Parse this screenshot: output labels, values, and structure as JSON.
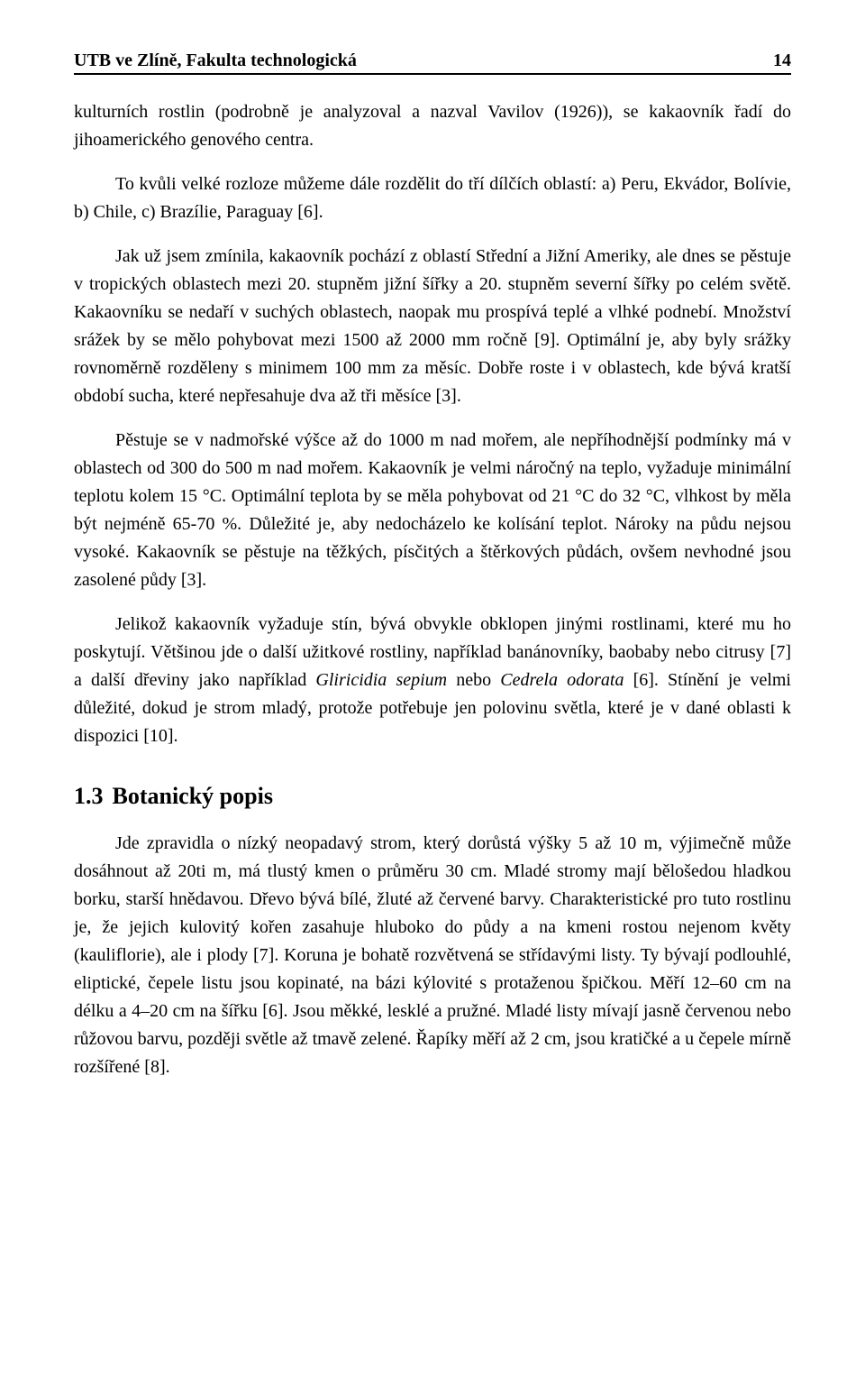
{
  "colors": {
    "page_background": "#ffffff",
    "text_color": "#000000",
    "rule_color": "#000000"
  },
  "typography": {
    "font_family": "Times New Roman",
    "body_fontsize_pt": 15,
    "header_fontsize_pt": 15,
    "heading_fontsize_pt": 20,
    "line_height": 1.55
  },
  "header": {
    "left": "UTB ve Zlíně, Fakulta technologická",
    "page_number": "14"
  },
  "paragraphs": {
    "p1": "kulturních rostlin (podrobně je analyzoval a nazval Vavilov (1926)), se kakaovník řadí do jihoamerického genového centra.",
    "p2": "To kvůli velké rozloze můžeme dále rozdělit do tří dílčích oblastí: a) Peru, Ekvádor, Bolívie, b) Chile, c) Brazílie, Paraguay [6].",
    "p3": "Jak už jsem zmínila, kakaovník pochází z oblastí Střední a Jižní Ameriky, ale dnes se pěstuje v tropických oblastech mezi 20. stupněm jižní šířky a 20. stupněm severní šířky po celém světě. Kakaovníku se nedaří v suchých oblastech, naopak mu prospívá teplé a vlhké podnebí. Množství srážek by se mělo pohybovat mezi 1500 až 2000 mm ročně [9]. Optimální je, aby byly srážky rovnoměrně rozděleny s minimem 100 mm za měsíc. Dobře roste i v oblastech, kde bývá kratší období sucha, které nepřesahuje dva až tři měsíce [3].",
    "p4": "Pěstuje se v nadmořské výšce až do 1000 m nad mořem, ale nepříhodnější podmínky má v oblastech od 300 do 500 m nad mořem. Kakaovník je velmi náročný na teplo, vyžaduje minimální teplotu kolem 15 °C. Optimální teplota by se měla pohybovat od 21 °C do 32 °C, vlhkost by měla být nejméně 65-70 %. Důležité je, aby nedocházelo ke kolísání teplot. Nároky na půdu nejsou vysoké. Kakaovník se pěstuje na těžkých, písčitých a štěrkových půdách, ovšem nevhodné jsou zasolené půdy [3].",
    "p5_a": "Jelikož kakaovník vyžaduje stín, bývá obvykle obklopen jinými rostlinami, které mu ho poskytují. Většinou jde o další užitkové rostliny, například banánovníky, baobaby nebo citrusy [7] a další dřeviny jako například ",
    "p5_it1": "Gliricidia sepium",
    "p5_mid": " nebo ",
    "p5_it2": "Cedrela odorata",
    "p5_b": " [6]. Stínění je velmi důležité, dokud je strom mladý, protože potřebuje jen polovinu světla, které je v dané oblasti k dispozici [10].",
    "p6": "Jde zpravidla o nízký neopadavý strom, který dorůstá výšky 5 až 10 m, výjimečně může dosáhnout až 20ti m, má tlustý kmen o průměru 30 cm. Mladé stromy mají bělošedou hladkou borku, starší hnědavou. Dřevo bývá bílé, žluté až červené barvy. Charakteristické pro tuto rostlinu je, že jejich kulovitý kořen zasahuje hluboko do půdy a na kmeni rostou nejenom květy (kauliflorie), ale i plody [7]. Koruna je bohatě rozvětvená se střídavými listy. Ty bývají podlouhlé, eliptické, čepele listu jsou kopinaté, na bázi kýlovité s protaženou špičkou. Měří 12–60 cm na délku a 4–20 cm na šířku [6]. Jsou měkké, lesklé a pružné. Mladé listy mívají jasně červenou nebo růžovou barvu, později světle až tmavě zelené. Řapíky měří až 2 cm, jsou kratičké a u čepele mírně rozšířené [8]."
  },
  "section": {
    "number": "1.3",
    "title": "Botanický popis"
  }
}
